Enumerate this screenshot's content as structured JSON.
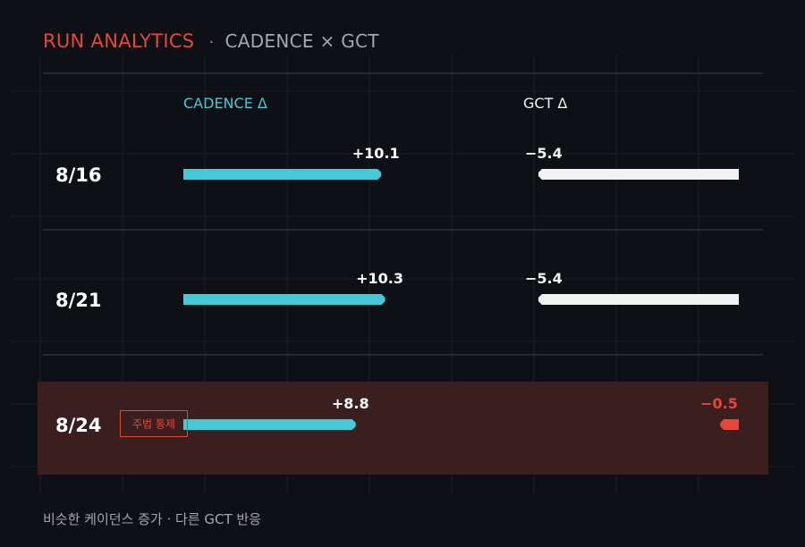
{
  "header": {
    "title": "RUN ANALYTICS",
    "separator": "·",
    "subtitle": "CADENCE × GCT"
  },
  "footer": {
    "caption": "비슷한 케이던스 증가 · 다른 GCT 반응"
  },
  "colors": {
    "background": "#0d1014",
    "cadence": "#45c9d6",
    "gct": "#f2f2f2",
    "accent_red": "#e5483a",
    "highlight_bg": "#3a1f1e"
  },
  "chart_data": {
    "type": "bar",
    "columns": [
      "CADENCE Δ",
      "GCT Δ"
    ],
    "categories": [
      "8/16",
      "8/21",
      "8/24"
    ],
    "series": [
      {
        "name": "CADENCE Δ",
        "values": [
          10.1,
          10.3,
          8.8
        ],
        "labels": [
          "+10.1",
          "+10.3",
          "+8.8"
        ]
      },
      {
        "name": "GCT Δ",
        "values": [
          -5.4,
          -5.4,
          -0.5
        ],
        "labels": [
          "−5.4",
          "−5.4",
          "−0.5"
        ]
      }
    ],
    "highlight": {
      "category": "8/24",
      "badge": "주법 통제"
    },
    "grid": true
  }
}
